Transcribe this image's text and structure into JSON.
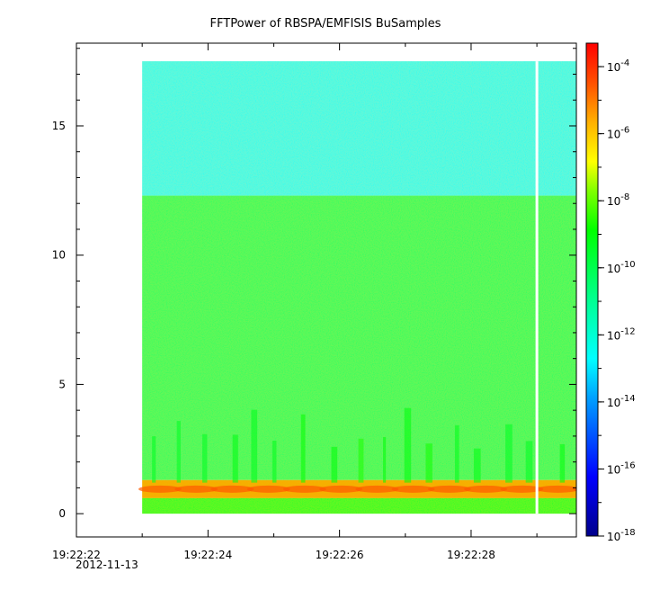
{
  "chart_data": {
    "type": "heatmap",
    "title": "FFTPower of RBSPA/EMFISIS  BuSamples",
    "xlabel": "",
    "ylabel": "",
    "date_label": "2012-11-13",
    "x_ticks": [
      {
        "value": 0,
        "label": "19:22:22"
      },
      {
        "value": 2,
        "label": "19:22:24"
      },
      {
        "value": 4,
        "label": "19:22:26"
      },
      {
        "value": 6,
        "label": "19:22:28"
      }
    ],
    "x_range": [
      0,
      7.6
    ],
    "y_ticks": [
      0,
      5,
      10,
      15
    ],
    "y_range": [
      -0.9,
      18.2
    ],
    "data_extent": {
      "x_start": 1.0,
      "x_end": 7.6,
      "y_min": 0,
      "y_max": 17.5
    },
    "gap_at": 7.0,
    "colorbar": {
      "scale": "log",
      "range_exponents": [
        -18,
        -3.3
      ],
      "tick_exponents": [
        -4,
        -6,
        -8,
        -10,
        -12,
        -14,
        -16,
        -18
      ],
      "tick_base": "10"
    },
    "bands": [
      {
        "y_from": 12.3,
        "y_to": 17.5,
        "level_exponent": -12.5
      },
      {
        "y_from": 1.3,
        "y_to": 12.3,
        "level_exponent": -10.3
      },
      {
        "y_from": 0.6,
        "y_to": 1.3,
        "level_exponent": -5.5
      },
      {
        "y_from": 0,
        "y_to": 0.6,
        "level_exponent": -9.5
      }
    ]
  }
}
